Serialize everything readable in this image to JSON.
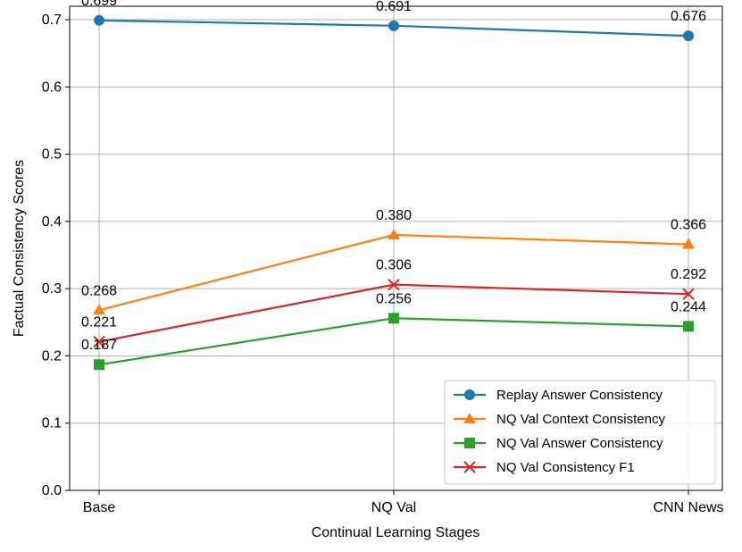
{
  "chart_data": {
    "type": "line",
    "title": "",
    "xlabel": "Continual Learning Stages",
    "ylabel": "Factual Consistency Scores",
    "categories": [
      "Base",
      "NQ Val",
      "CNN News"
    ],
    "ylim": [
      0.0,
      0.72
    ],
    "yticks": [
      0.0,
      0.1,
      0.2,
      0.3,
      0.4,
      0.5,
      0.6,
      0.7
    ],
    "ytick_labels": [
      "0.0",
      "0.1",
      "0.2",
      "0.3",
      "0.4",
      "0.5",
      "0.6",
      "0.7"
    ],
    "grid": true,
    "legend_position": "lower-right",
    "series": [
      {
        "name": "Replay Answer Consistency",
        "values": [
          0.699,
          0.691,
          0.676
        ],
        "labels": [
          "0.699",
          "0.691",
          "0.676"
        ],
        "color": "#1f77b4",
        "marker": "circle"
      },
      {
        "name": "NQ Val Context Consistency",
        "values": [
          0.268,
          0.38,
          0.366
        ],
        "labels": [
          "0.268",
          "0.380",
          "0.366"
        ],
        "color": "#ff7f0e",
        "marker": "triangle"
      },
      {
        "name": "NQ Val Answer Consistency",
        "values": [
          0.187,
          0.256,
          0.244
        ],
        "labels": [
          "0.187",
          "0.256",
          "0.244"
        ],
        "color": "#2ca02c",
        "marker": "square"
      },
      {
        "name": "NQ Val Consistency F1",
        "values": [
          0.221,
          0.306,
          0.292
        ],
        "labels": [
          "0.221",
          "0.306",
          "0.292"
        ],
        "color": "#d62728",
        "marker": "x"
      }
    ]
  }
}
